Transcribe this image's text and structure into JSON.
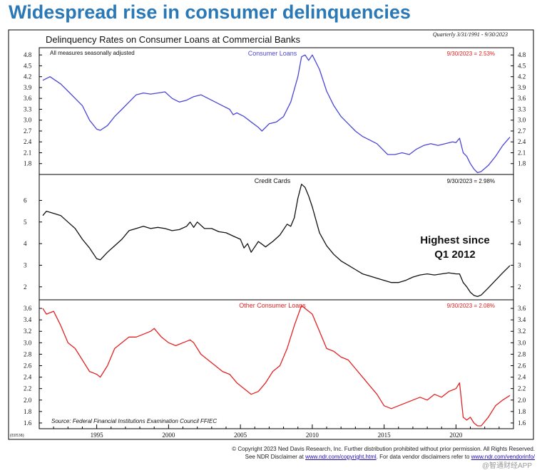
{
  "headline": "Widespread rise in consumer delinquencies",
  "colors": {
    "headline": "#2a78b5",
    "consumer": "#4b47d6",
    "credit": "#111111",
    "other": "#e22222"
  },
  "chart_data": {
    "title": "Delinquency Rates on Consumer Loans at Commercial Banks",
    "period_note": "Quarterly 3/31/1991 - 9/30/2023",
    "adjust_note": "All measures seasonally adjusted",
    "source": "Source: Federal Financial Institutions Examination Council FFIEC",
    "chart_id": "(E0538)",
    "x_ticks": [
      "1995",
      "2000",
      "2005",
      "2010",
      "2015",
      "2020"
    ],
    "panels": [
      {
        "type": "line",
        "name": "Consumer Loans",
        "latest": "9/30/2023 = 2.53%",
        "ylim": [
          1.5,
          5.0
        ],
        "y_ticks": [
          "4.8",
          "4.5",
          "4.2",
          "3.9",
          "3.6",
          "3.3",
          "3.0",
          "2.7",
          "2.4",
          "2.1",
          "1.8"
        ],
        "points": [
          [
            1991.25,
            4.1
          ],
          [
            1991.75,
            4.2
          ],
          [
            1992.5,
            4.0
          ],
          [
            1993,
            3.8
          ],
          [
            1993.5,
            3.6
          ],
          [
            1994,
            3.4
          ],
          [
            1994.5,
            3.0
          ],
          [
            1995,
            2.75
          ],
          [
            1995.25,
            2.72
          ],
          [
            1995.75,
            2.85
          ],
          [
            1996.25,
            3.1
          ],
          [
            1996.75,
            3.3
          ],
          [
            1997.25,
            3.5
          ],
          [
            1997.75,
            3.7
          ],
          [
            1998.25,
            3.75
          ],
          [
            1998.75,
            3.72
          ],
          [
            1999.25,
            3.75
          ],
          [
            1999.75,
            3.78
          ],
          [
            2000.25,
            3.6
          ],
          [
            2000.75,
            3.5
          ],
          [
            2001.25,
            3.55
          ],
          [
            2001.75,
            3.65
          ],
          [
            2002.25,
            3.7
          ],
          [
            2002.75,
            3.6
          ],
          [
            2003.25,
            3.5
          ],
          [
            2003.75,
            3.4
          ],
          [
            2004.25,
            3.3
          ],
          [
            2004.5,
            3.15
          ],
          [
            2004.75,
            3.2
          ],
          [
            2005.25,
            3.1
          ],
          [
            2005.75,
            2.95
          ],
          [
            2006.25,
            2.8
          ],
          [
            2006.5,
            2.7
          ],
          [
            2007,
            2.9
          ],
          [
            2007.5,
            2.95
          ],
          [
            2008,
            3.1
          ],
          [
            2008.5,
            3.5
          ],
          [
            2009,
            4.2
          ],
          [
            2009.25,
            4.75
          ],
          [
            2009.5,
            4.8
          ],
          [
            2009.75,
            4.65
          ],
          [
            2010,
            4.8
          ],
          [
            2010.5,
            4.4
          ],
          [
            2011,
            3.8
          ],
          [
            2011.5,
            3.4
          ],
          [
            2012,
            3.1
          ],
          [
            2012.5,
            2.9
          ],
          [
            2013,
            2.7
          ],
          [
            2013.5,
            2.55
          ],
          [
            2014,
            2.45
          ],
          [
            2014.5,
            2.35
          ],
          [
            2015,
            2.15
          ],
          [
            2015.25,
            2.05
          ],
          [
            2015.75,
            2.05
          ],
          [
            2016.25,
            2.1
          ],
          [
            2016.75,
            2.05
          ],
          [
            2017.25,
            2.2
          ],
          [
            2017.75,
            2.3
          ],
          [
            2018.25,
            2.35
          ],
          [
            2018.75,
            2.3
          ],
          [
            2019.25,
            2.35
          ],
          [
            2019.75,
            2.4
          ],
          [
            2020,
            2.38
          ],
          [
            2020.25,
            2.5
          ],
          [
            2020.5,
            2.1
          ],
          [
            2020.75,
            2.0
          ],
          [
            2021,
            1.8
          ],
          [
            2021.25,
            1.65
          ],
          [
            2021.5,
            1.55
          ],
          [
            2021.75,
            1.58
          ],
          [
            2022.25,
            1.75
          ],
          [
            2022.75,
            2.0
          ],
          [
            2023.25,
            2.3
          ],
          [
            2023.75,
            2.53
          ]
        ]
      },
      {
        "type": "line",
        "name": "Credit Cards",
        "latest": "9/30/2023 = 2.98%",
        "ylim": [
          1.4,
          7.2
        ],
        "y_ticks": [
          "6",
          "5",
          "4",
          "3",
          "2"
        ],
        "points": [
          [
            1991.25,
            5.3
          ],
          [
            1991.5,
            5.5
          ],
          [
            1992,
            5.4
          ],
          [
            1992.5,
            5.3
          ],
          [
            1993,
            5.0
          ],
          [
            1993.5,
            4.7
          ],
          [
            1994,
            4.2
          ],
          [
            1994.5,
            3.8
          ],
          [
            1995,
            3.3
          ],
          [
            1995.25,
            3.25
          ],
          [
            1995.75,
            3.6
          ],
          [
            1996.25,
            3.9
          ],
          [
            1996.75,
            4.2
          ],
          [
            1997.25,
            4.6
          ],
          [
            1997.75,
            4.7
          ],
          [
            1998.25,
            4.8
          ],
          [
            1998.75,
            4.7
          ],
          [
            1999.25,
            4.75
          ],
          [
            1999.75,
            4.7
          ],
          [
            2000.25,
            4.6
          ],
          [
            2000.75,
            4.65
          ],
          [
            2001.25,
            4.8
          ],
          [
            2001.5,
            5.0
          ],
          [
            2001.75,
            4.75
          ],
          [
            2002,
            5.0
          ],
          [
            2002.5,
            4.7
          ],
          [
            2003,
            4.7
          ],
          [
            2003.5,
            4.55
          ],
          [
            2004,
            4.5
          ],
          [
            2004.5,
            4.35
          ],
          [
            2005,
            4.2
          ],
          [
            2005.25,
            3.8
          ],
          [
            2005.5,
            4.0
          ],
          [
            2005.75,
            3.6
          ],
          [
            2006.25,
            4.1
          ],
          [
            2006.75,
            3.85
          ],
          [
            2007.25,
            4.1
          ],
          [
            2007.75,
            4.4
          ],
          [
            2008.25,
            4.9
          ],
          [
            2008.5,
            4.8
          ],
          [
            2008.75,
            5.2
          ],
          [
            2009,
            6.1
          ],
          [
            2009.25,
            6.75
          ],
          [
            2009.5,
            6.6
          ],
          [
            2009.75,
            6.2
          ],
          [
            2010,
            5.7
          ],
          [
            2010.5,
            4.5
          ],
          [
            2011,
            3.9
          ],
          [
            2011.5,
            3.5
          ],
          [
            2012,
            3.2
          ],
          [
            2012.5,
            3.0
          ],
          [
            2013,
            2.8
          ],
          [
            2013.5,
            2.6
          ],
          [
            2014,
            2.5
          ],
          [
            2014.5,
            2.4
          ],
          [
            2015,
            2.3
          ],
          [
            2015.5,
            2.2
          ],
          [
            2016,
            2.2
          ],
          [
            2016.5,
            2.3
          ],
          [
            2017,
            2.45
          ],
          [
            2017.5,
            2.55
          ],
          [
            2018,
            2.6
          ],
          [
            2018.5,
            2.55
          ],
          [
            2019,
            2.6
          ],
          [
            2019.5,
            2.65
          ],
          [
            2020,
            2.6
          ],
          [
            2020.25,
            2.6
          ],
          [
            2020.5,
            2.2
          ],
          [
            2020.75,
            2.0
          ],
          [
            2021,
            1.75
          ],
          [
            2021.25,
            1.6
          ],
          [
            2021.5,
            1.55
          ],
          [
            2021.75,
            1.62
          ],
          [
            2022.25,
            1.95
          ],
          [
            2022.75,
            2.3
          ],
          [
            2023.25,
            2.65
          ],
          [
            2023.75,
            2.98
          ]
        ]
      },
      {
        "type": "line",
        "name": "Other Consumer Loans",
        "latest": "9/30/2023 = 2.08%",
        "ylim": [
          1.5,
          3.75
        ],
        "y_ticks": [
          "3.6",
          "3.4",
          "3.2",
          "3.0",
          "2.8",
          "2.6",
          "2.4",
          "2.2",
          "2.0",
          "1.8",
          "1.6"
        ],
        "points": [
          [
            1991.25,
            3.6
          ],
          [
            1991.5,
            3.5
          ],
          [
            1992,
            3.55
          ],
          [
            1992.5,
            3.3
          ],
          [
            1993,
            3.0
          ],
          [
            1993.5,
            2.9
          ],
          [
            1994,
            2.7
          ],
          [
            1994.5,
            2.5
          ],
          [
            1995,
            2.45
          ],
          [
            1995.25,
            2.4
          ],
          [
            1995.75,
            2.6
          ],
          [
            1996.25,
            2.9
          ],
          [
            1996.75,
            3.0
          ],
          [
            1997.25,
            3.1
          ],
          [
            1997.75,
            3.1
          ],
          [
            1998.25,
            3.15
          ],
          [
            1998.75,
            3.2
          ],
          [
            1999,
            3.25
          ],
          [
            1999.5,
            3.1
          ],
          [
            2000,
            3.0
          ],
          [
            2000.5,
            2.95
          ],
          [
            2001,
            3.0
          ],
          [
            2001.5,
            3.05
          ],
          [
            2001.75,
            3.0
          ],
          [
            2002.25,
            2.8
          ],
          [
            2002.75,
            2.7
          ],
          [
            2003.25,
            2.6
          ],
          [
            2003.75,
            2.5
          ],
          [
            2004.25,
            2.45
          ],
          [
            2004.75,
            2.3
          ],
          [
            2005.25,
            2.2
          ],
          [
            2005.75,
            2.1
          ],
          [
            2006.25,
            2.15
          ],
          [
            2006.75,
            2.3
          ],
          [
            2007.25,
            2.5
          ],
          [
            2007.75,
            2.6
          ],
          [
            2008.25,
            2.9
          ],
          [
            2008.75,
            3.3
          ],
          [
            2009.25,
            3.65
          ],
          [
            2009.5,
            3.6
          ],
          [
            2010,
            3.5
          ],
          [
            2010.5,
            3.2
          ],
          [
            2011,
            2.9
          ],
          [
            2011.5,
            2.85
          ],
          [
            2012,
            2.75
          ],
          [
            2012.5,
            2.7
          ],
          [
            2013,
            2.55
          ],
          [
            2013.5,
            2.4
          ],
          [
            2014,
            2.25
          ],
          [
            2014.5,
            2.1
          ],
          [
            2015,
            1.9
          ],
          [
            2015.5,
            1.85
          ],
          [
            2016,
            1.9
          ],
          [
            2016.5,
            1.95
          ],
          [
            2017,
            2.0
          ],
          [
            2017.5,
            2.05
          ],
          [
            2018,
            2.0
          ],
          [
            2018.5,
            2.1
          ],
          [
            2019,
            2.05
          ],
          [
            2019.5,
            2.15
          ],
          [
            2020,
            2.2
          ],
          [
            2020.25,
            2.3
          ],
          [
            2020.5,
            1.7
          ],
          [
            2020.75,
            1.65
          ],
          [
            2021,
            1.7
          ],
          [
            2021.25,
            1.6
          ],
          [
            2021.5,
            1.55
          ],
          [
            2021.75,
            1.55
          ],
          [
            2022.25,
            1.7
          ],
          [
            2022.75,
            1.9
          ],
          [
            2023.25,
            2.0
          ],
          [
            2023.75,
            2.08
          ]
        ]
      }
    ],
    "annotation": [
      "Highest since",
      "Q1 2012"
    ]
  },
  "footer": {
    "copyright": "© Copyright 2023 Ned Davis Research, Inc.  Further distribution prohibited without prior permission.  All Rights Reserved.",
    "disclaimer_lead": "See NDR Disclaimer at ",
    "disclaimer_link": "www.ndr.com/copyright.html",
    "disclaimer_tail": ". For data vendor disclaimers refer to ",
    "vendor_link": "www.ndr.com/vendorinfo/"
  },
  "watermark": "@智通财经APP"
}
